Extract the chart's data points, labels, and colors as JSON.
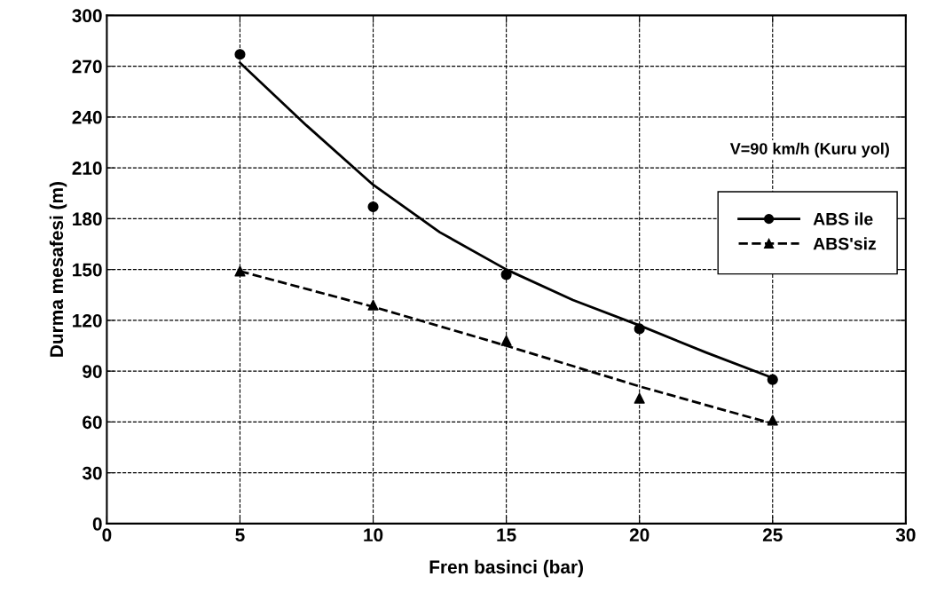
{
  "chart_data": {
    "type": "scatter",
    "xlabel": "Fren basinci (bar)",
    "ylabel": "Durma mesafesi (m)",
    "xlim": [
      0,
      30
    ],
    "xticks": [
      0,
      5,
      10,
      15,
      20,
      25,
      30
    ],
    "ylim": [
      0,
      300
    ],
    "yticks": [
      0,
      30,
      60,
      90,
      120,
      150,
      180,
      210,
      240,
      270,
      300
    ],
    "grid": true,
    "legend": "right",
    "annotations": [
      "V=90 km/h (Kuru yol)"
    ],
    "x": [
      5,
      10,
      15,
      20,
      25
    ],
    "series": [
      {
        "name": "ABS ile",
        "marker": "circle",
        "color": "#000000",
        "values": [
          277,
          187,
          147,
          115,
          85
        ]
      },
      {
        "type": "line",
        "line_style": "solid",
        "color": "#000000",
        "x": [
          5,
          7.5,
          10,
          12.5,
          15,
          17.5,
          20,
          22.5,
          25
        ],
        "values": [
          272,
          235,
          200,
          172,
          150,
          132,
          117,
          101,
          86
        ]
      },
      {
        "name": "ABS'siz",
        "marker": "triangle",
        "color": "#000000",
        "values": [
          149,
          129,
          108,
          74,
          61
        ]
      },
      {
        "type": "line",
        "line_style": "dashed",
        "color": "#000000",
        "x": [
          5,
          10,
          15,
          20,
          25
        ],
        "values": [
          149,
          128,
          105,
          81,
          59
        ]
      }
    ]
  }
}
